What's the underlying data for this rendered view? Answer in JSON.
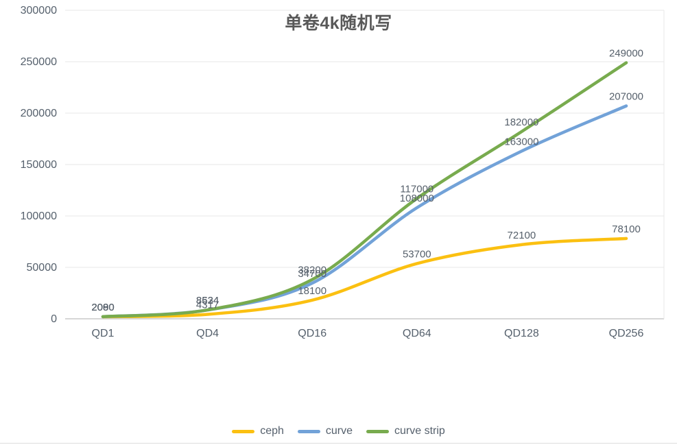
{
  "title": "单卷4k随机写",
  "chart_data": {
    "type": "line",
    "title": "单卷4k随机写",
    "categories": [
      "QD1",
      "QD4",
      "QD16",
      "QD64",
      "QD128",
      "QD256"
    ],
    "series": [
      {
        "name": "ceph",
        "color": "#FBC011",
        "values": [
          2000,
          4317,
          18100,
          53700,
          72100,
          78100
        ]
      },
      {
        "name": "curve",
        "color": "#72A2D8",
        "values": [
          2080,
          8534,
          34700,
          108000,
          163000,
          207000
        ]
      },
      {
        "name": "curve strip",
        "color": "#78AB4E",
        "values": [
          2090,
          8624,
          38200,
          117000,
          182000,
          249000
        ]
      }
    ],
    "ylim": [
      0,
      300000
    ],
    "yticks": [
      0,
      50000,
      100000,
      150000,
      200000,
      250000,
      300000
    ],
    "grid": true,
    "show_data_labels": true,
    "legend_position": "bottom",
    "xlabel": "",
    "ylabel": ""
  },
  "colors": {
    "grid": "#e7e7e7",
    "axis": "#c9c9c9",
    "title_text": "#595959",
    "tick_text": "#55606c",
    "data_label_text": "#56606b"
  }
}
